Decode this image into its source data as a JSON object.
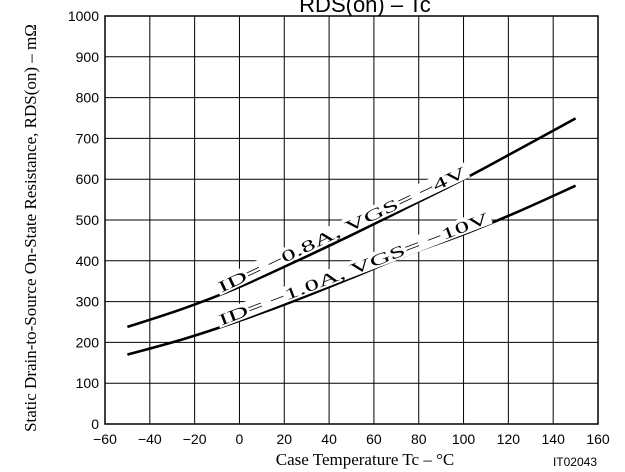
{
  "chart_data": {
    "type": "line",
    "title": "RDS(on) – Tc",
    "xlabel": "Case Temperature  Tc  –  °C",
    "ylabel": "Static Drain-to-Source On-State Resistance, RDS(on)  –  mΩ",
    "xlim": [
      -60,
      160
    ],
    "ylim": [
      0,
      1000
    ],
    "x_ticks": [
      "−60",
      "−40",
      "−20",
      "0",
      "20",
      "40",
      "60",
      "80",
      "100",
      "120",
      "140",
      "160"
    ],
    "y_ticks": [
      "0",
      "100",
      "200",
      "300",
      "400",
      "500",
      "600",
      "700",
      "800",
      "900",
      "1000"
    ],
    "grid": true,
    "figure_id": "IT02043",
    "series": [
      {
        "name": "ID= −0.8A, VGS= −4V",
        "x": [
          -50,
          -25,
          0,
          25,
          50,
          75,
          100,
          125,
          150
        ],
        "y": [
          238,
          283,
          336,
          398,
          463,
          531,
          600,
          674,
          749
        ]
      },
      {
        "name": "ID= −1.0A, VGS= −10V",
        "x": [
          -50,
          -25,
          0,
          25,
          50,
          75,
          100,
          125,
          150
        ],
        "y": [
          170,
          208,
          253,
          303,
          358,
          415,
          465,
          522,
          584
        ]
      }
    ]
  }
}
